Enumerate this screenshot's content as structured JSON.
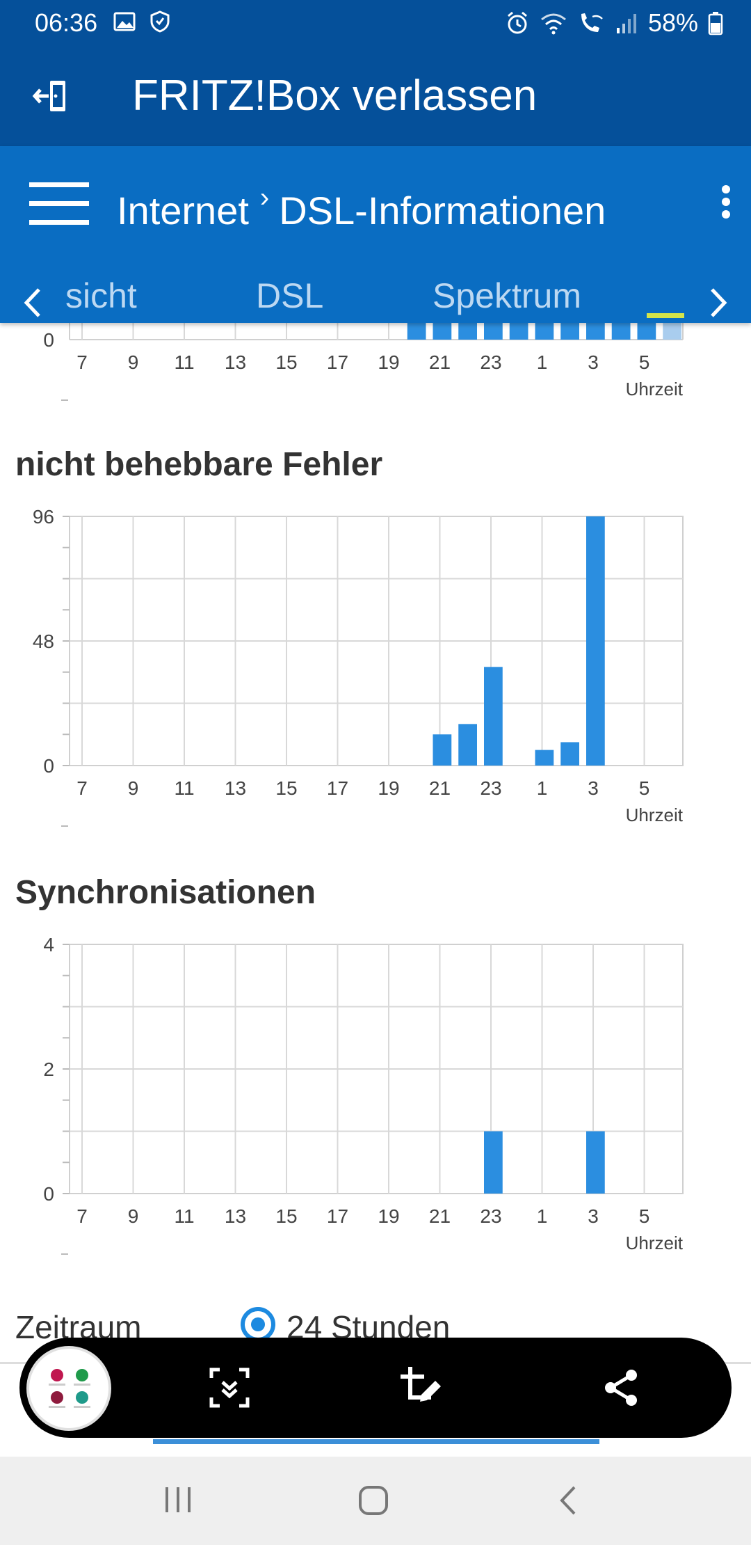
{
  "status_bar": {
    "time": "06:36",
    "battery": "58%",
    "left_icons": [
      "image-icon",
      "shield-icon"
    ],
    "right_icons": [
      "alarm-icon",
      "wifi-icon",
      "wifi-call-icon",
      "signal-icon",
      "battery-icon"
    ]
  },
  "app_bar": {
    "title": "FRITZ!Box verlassen",
    "icon": "exit-icon"
  },
  "nav": {
    "breadcrumb": [
      "Internet",
      "DSL-Informationen"
    ],
    "tabs": [
      {
        "label": "sicht"
      },
      {
        "label": "DSL"
      },
      {
        "label": "Spektrum"
      }
    ]
  },
  "charts": [
    {
      "chart_data": {
        "type": "bar",
        "title": "",
        "xlabel": "Uhrzeit",
        "x_ticks": [
          "7",
          "9",
          "11",
          "13",
          "15",
          "17",
          "19",
          "21",
          "23",
          "1",
          "3",
          "5"
        ],
        "y_ticks": [
          "0"
        ],
        "partial": true
      }
    },
    {
      "chart_data": {
        "type": "bar",
        "title": "nicht behebbare Fehler",
        "xlabel": "Uhrzeit",
        "x_ticks": [
          "7",
          "9",
          "11",
          "13",
          "15",
          "17",
          "19",
          "21",
          "23",
          "1",
          "3",
          "5"
        ],
        "y_ticks": [
          "0",
          "48",
          "96"
        ],
        "ylim": [
          0,
          96
        ],
        "values": [
          0,
          0,
          0,
          0,
          0,
          0,
          0,
          0,
          0,
          0,
          0,
          0,
          0,
          0,
          12,
          16,
          38,
          0,
          6,
          9,
          96,
          0,
          0,
          0
        ]
      }
    },
    {
      "chart_data": {
        "type": "bar",
        "title": "Synchronisationen",
        "xlabel": "Uhrzeit",
        "x_ticks": [
          "7",
          "9",
          "11",
          "13",
          "15",
          "17",
          "19",
          "21",
          "23",
          "1",
          "3",
          "5"
        ],
        "y_ticks": [
          "0",
          "2",
          "4"
        ],
        "ylim": [
          0,
          4
        ],
        "values": [
          0,
          0,
          0,
          0,
          0,
          0,
          0,
          0,
          0,
          0,
          0,
          0,
          0,
          0,
          0,
          0,
          1,
          0,
          0,
          0,
          1,
          0,
          0,
          0
        ]
      }
    }
  ],
  "period": {
    "label": "Zeitraum",
    "option": "24 Stunden"
  },
  "colors": {
    "header": "#05509a",
    "nav": "#0a6dc2",
    "bar": "#2b8ee0",
    "tab_indicator": "#d4e44a"
  }
}
